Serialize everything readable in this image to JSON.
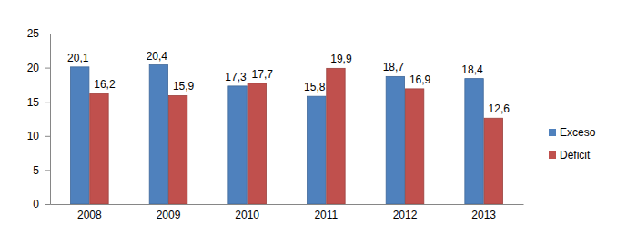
{
  "chart_data": {
    "type": "bar",
    "categories": [
      "2008",
      "2009",
      "2010",
      "2011",
      "2012",
      "2013"
    ],
    "series": [
      {
        "name": "Exceso",
        "color": "#4f81bd",
        "values": [
          20.1,
          20.4,
          17.3,
          15.8,
          18.7,
          18.4
        ],
        "value_labels": [
          "20,1",
          "20,4",
          "17,3",
          "15,8",
          "18,7",
          "18,4"
        ]
      },
      {
        "name": "Déficit",
        "color": "#c0504d",
        "values": [
          16.2,
          15.9,
          17.7,
          19.9,
          16.9,
          12.6
        ],
        "value_labels": [
          "16,2",
          "15,9",
          "17,7",
          "19,9",
          "16,9",
          "12,6"
        ]
      }
    ],
    "ylim": [
      0,
      25
    ],
    "yticks": [
      0,
      5,
      10,
      15,
      20,
      25
    ],
    "grid": false,
    "legend": "right",
    "data_labels": true
  }
}
